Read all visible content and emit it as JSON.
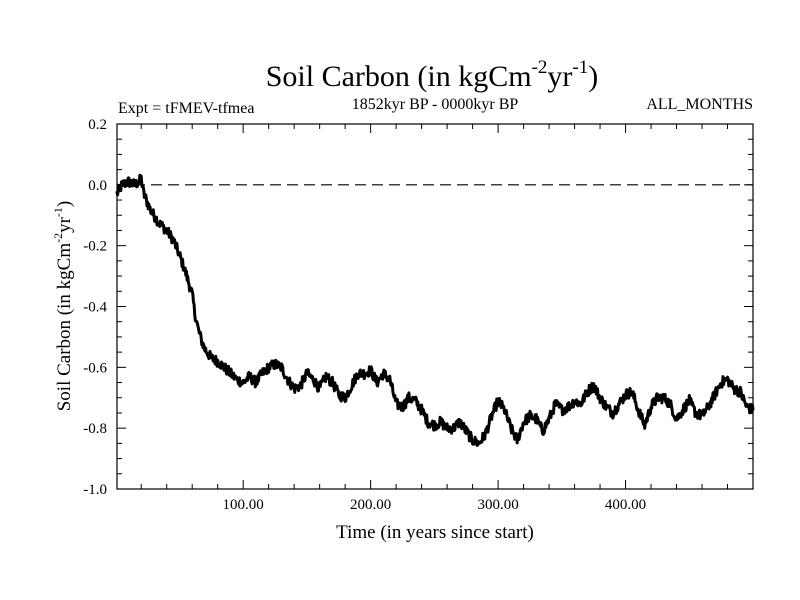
{
  "chart_data": {
    "type": "line",
    "title": "Soil Carbon (in kgCm",
    "title_sup1": "-2",
    "title_mid": "yr",
    "title_sup2": "-1",
    "title_end": ")",
    "expt_label": "Expt = tFMEV-tfmea",
    "period_label": "1852kyr BP - 0000kyr BP",
    "season_label": "ALL_MONTHS",
    "xlabel": "Time (in years since start)",
    "ylabel": "Soil Carbon (in kgCm",
    "ylabel_sup1": "-2",
    "ylabel_mid": "yr",
    "ylabel_sup2": "-1",
    "ylabel_end": ")",
    "xlim": [
      1,
      500
    ],
    "ylim": [
      -1.0,
      0.2
    ],
    "xticks": [
      100,
      200,
      300,
      400
    ],
    "xtick_labels": [
      "100.00",
      "200.00",
      "300.00",
      "400.00"
    ],
    "yticks": [
      0.2,
      0.0,
      -0.2,
      -0.4,
      -0.6,
      -0.8,
      -1.0
    ],
    "ytick_labels": [
      "0.2",
      "0.0",
      "-0.2",
      "-0.4",
      "-0.6",
      "-0.8",
      "-1.0"
    ],
    "reference_line": 0.0,
    "series": [
      {
        "name": "Soil Carbon",
        "x": [
          1,
          5,
          10,
          15,
          18,
          20,
          22,
          25,
          28,
          30,
          35,
          40,
          45,
          50,
          55,
          60,
          62,
          65,
          68,
          70,
          75,
          80,
          85,
          90,
          95,
          100,
          105,
          110,
          115,
          120,
          125,
          130,
          135,
          140,
          145,
          150,
          155,
          160,
          165,
          170,
          175,
          180,
          185,
          190,
          195,
          200,
          205,
          210,
          215,
          220,
          225,
          230,
          235,
          240,
          245,
          250,
          255,
          260,
          265,
          270,
          275,
          280,
          285,
          290,
          295,
          300,
          305,
          310,
          315,
          320,
          325,
          330,
          335,
          340,
          345,
          350,
          355,
          360,
          365,
          370,
          375,
          380,
          385,
          390,
          395,
          400,
          405,
          410,
          415,
          420,
          425,
          430,
          435,
          440,
          445,
          450,
          455,
          460,
          465,
          470,
          475,
          480,
          485,
          490,
          495,
          500
        ],
        "y": [
          -0.03,
          0.0,
          0.01,
          0.0,
          0.01,
          0.02,
          -0.03,
          -0.06,
          -0.09,
          -0.1,
          -0.13,
          -0.15,
          -0.18,
          -0.23,
          -0.29,
          -0.36,
          -0.42,
          -0.48,
          -0.52,
          -0.54,
          -0.57,
          -0.58,
          -0.6,
          -0.62,
          -0.64,
          -0.65,
          -0.63,
          -0.65,
          -0.62,
          -0.6,
          -0.59,
          -0.6,
          -0.64,
          -0.67,
          -0.66,
          -0.62,
          -0.64,
          -0.67,
          -0.63,
          -0.65,
          -0.69,
          -0.7,
          -0.66,
          -0.62,
          -0.62,
          -0.61,
          -0.65,
          -0.62,
          -0.64,
          -0.72,
          -0.73,
          -0.7,
          -0.71,
          -0.74,
          -0.78,
          -0.79,
          -0.78,
          -0.8,
          -0.8,
          -0.78,
          -0.81,
          -0.84,
          -0.85,
          -0.82,
          -0.76,
          -0.71,
          -0.74,
          -0.8,
          -0.84,
          -0.78,
          -0.76,
          -0.77,
          -0.81,
          -0.77,
          -0.72,
          -0.74,
          -0.73,
          -0.71,
          -0.72,
          -0.68,
          -0.66,
          -0.7,
          -0.73,
          -0.75,
          -0.72,
          -0.69,
          -0.68,
          -0.74,
          -0.79,
          -0.73,
          -0.7,
          -0.7,
          -0.72,
          -0.77,
          -0.74,
          -0.71,
          -0.75,
          -0.76,
          -0.73,
          -0.69,
          -0.65,
          -0.64,
          -0.67,
          -0.68,
          -0.73,
          -0.74
        ]
      }
    ]
  }
}
